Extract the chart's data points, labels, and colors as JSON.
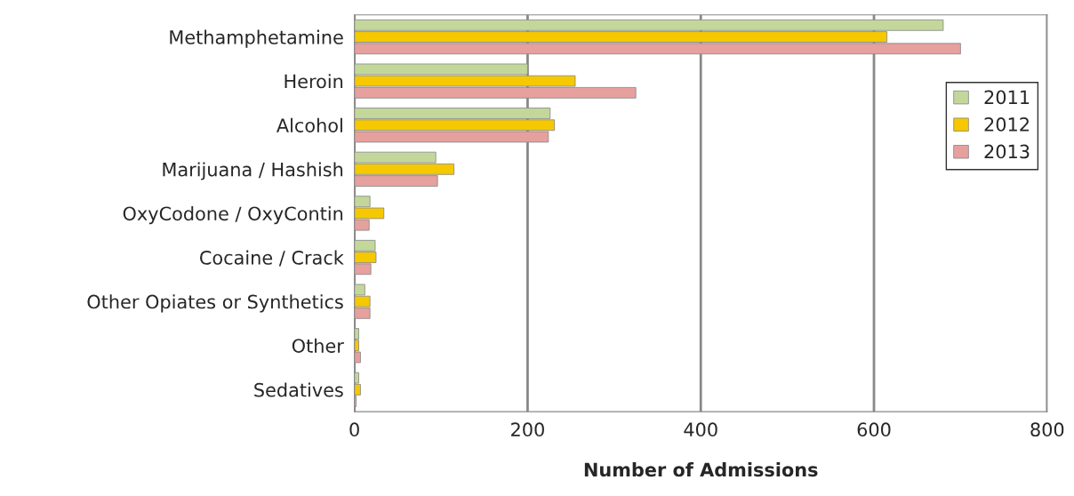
{
  "chart_data": {
    "type": "bar",
    "orientation": "horizontal",
    "xlabel": "Number of Admissions",
    "categories": [
      "Methamphetamine",
      "Heroin",
      "Alcohol",
      "Marijuana / Hashish",
      "OxyCodone / OxyContin",
      "Cocaine / Crack",
      "Other Opiates or Synthetics",
      "Other",
      "Sedatives"
    ],
    "series": [
      {
        "name": "2011",
        "color": "#c4d79b",
        "values": [
          680,
          200,
          226,
          94,
          18,
          24,
          12,
          5,
          5
        ]
      },
      {
        "name": "2012",
        "color": "#f5c800",
        "values": [
          615,
          255,
          231,
          115,
          34,
          25,
          18,
          5,
          7
        ]
      },
      {
        "name": "2013",
        "color": "#e6a09e",
        "values": [
          700,
          325,
          224,
          96,
          17,
          19,
          18,
          7,
          2
        ]
      }
    ],
    "xlim": [
      0,
      800
    ],
    "xticks": [
      0,
      200,
      400,
      600,
      800
    ],
    "grid": "x",
    "legend": "right"
  }
}
